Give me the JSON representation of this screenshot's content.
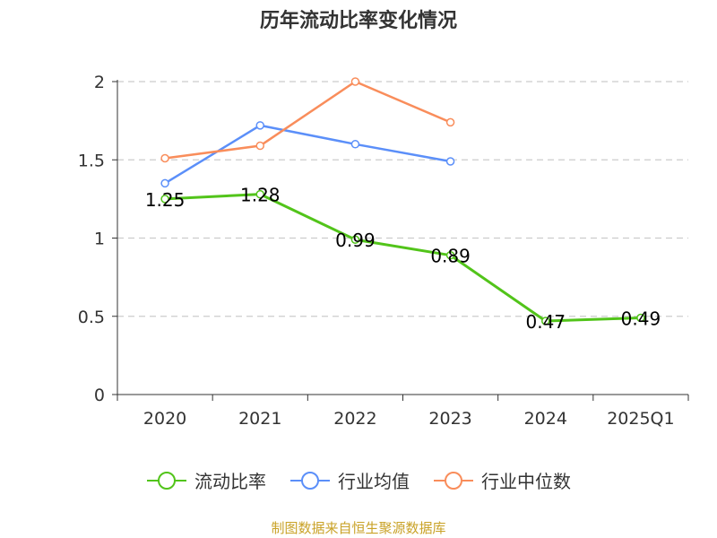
{
  "title": "历年流动比率变化情况",
  "source": "制图数据来自恒生聚源数据库",
  "chart_data": {
    "type": "line",
    "categories": [
      "2020",
      "2021",
      "2022",
      "2023",
      "2024",
      "2025Q1"
    ],
    "ylim": [
      0,
      2
    ],
    "yticks": [
      0,
      0.5,
      1,
      1.5,
      2
    ],
    "ytick_labels": [
      "0",
      "0.5",
      "1",
      "1.5",
      "2"
    ],
    "grid": true,
    "legend_position": "bottom",
    "series": [
      {
        "name": "流动比率",
        "color": "#52c41a",
        "values": [
          1.25,
          1.28,
          0.99,
          0.89,
          0.47,
          0.49
        ],
        "labels": [
          "1.25",
          "1.28",
          "0.99",
          "0.89",
          "0.47",
          "0.49"
        ]
      },
      {
        "name": "行业均值",
        "color": "#5b8ff9",
        "values": [
          1.35,
          1.72,
          1.6,
          1.49,
          null,
          null
        ]
      },
      {
        "name": "行业中位数",
        "color": "#f98d5b",
        "values": [
          1.51,
          1.59,
          2.0,
          1.74,
          null,
          null
        ]
      }
    ]
  }
}
